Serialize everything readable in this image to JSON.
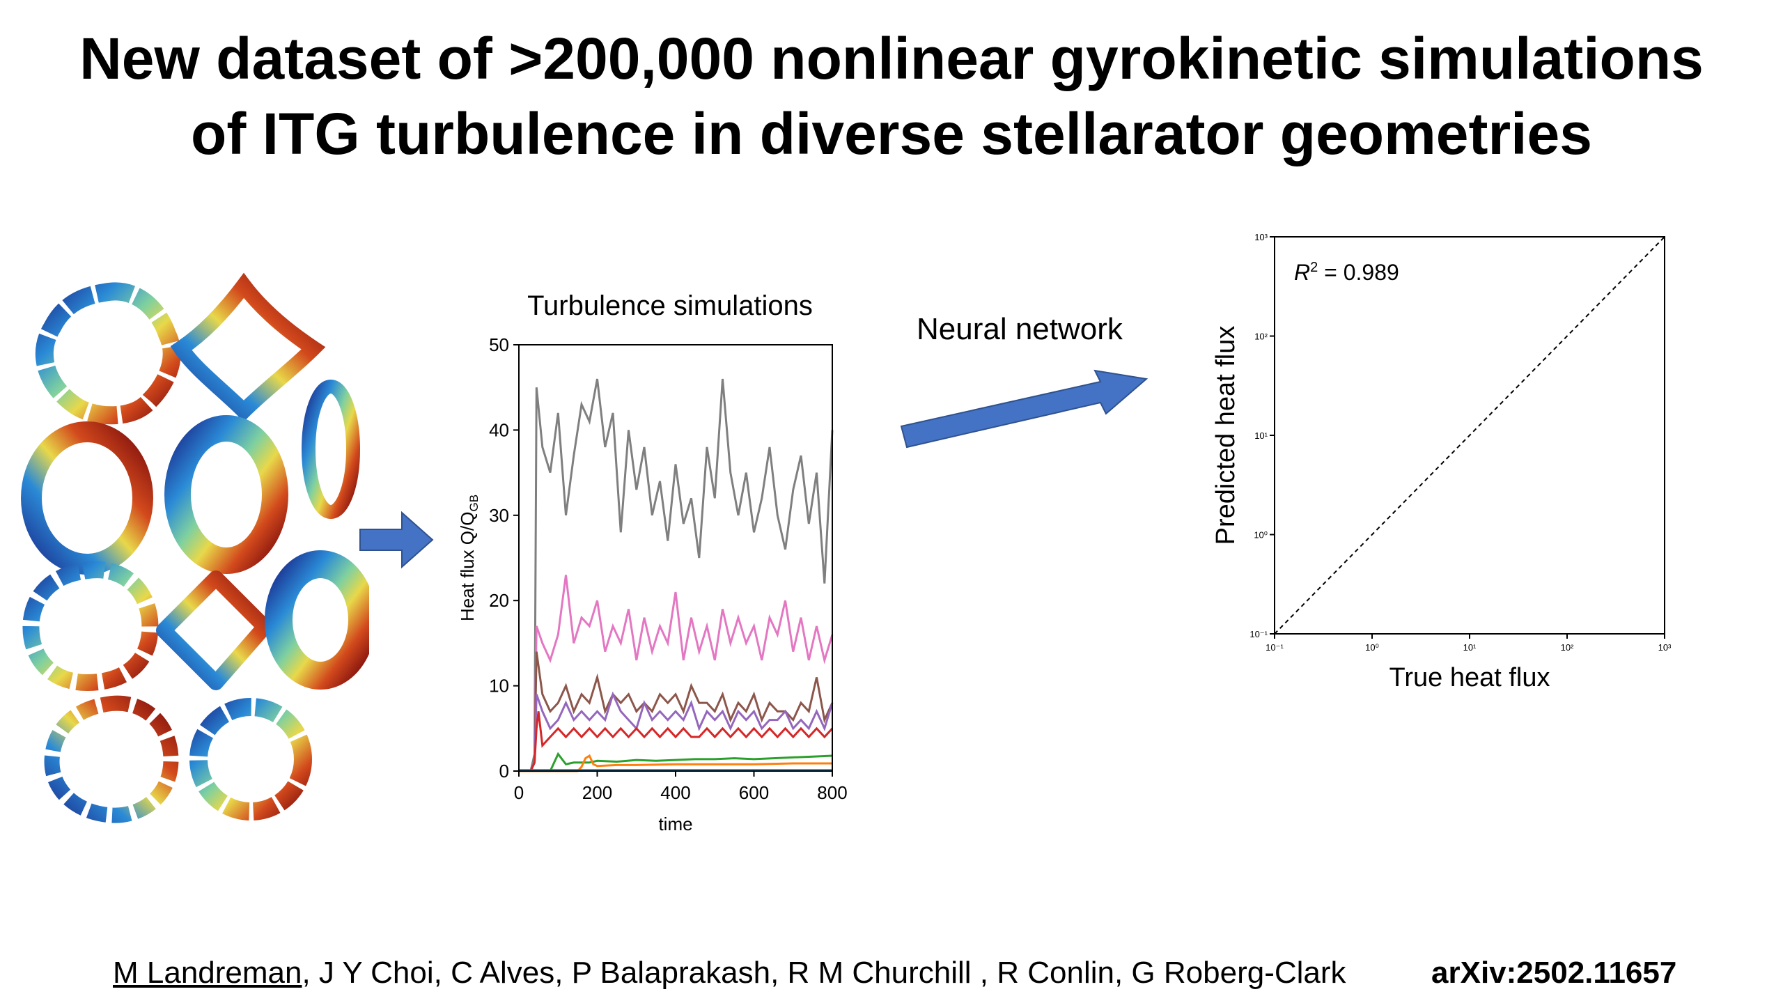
{
  "title": {
    "line1": "New dataset of >200,000 nonlinear gyrokinetic simulations",
    "line2": "of ITG turbulence in diverse stellarator geometries"
  },
  "arrow_label": "Neural network",
  "footer": {
    "first_author": "M Landreman",
    "other_authors": ", J Y Choi, C Alves, P Balaprakash, R M Churchill , R Conlin, G Roberg-Clark",
    "arxiv": "arXiv:2502.11657"
  },
  "colors": {
    "arrow": "#4472c4",
    "gray": "#7f7f7f",
    "pink": "#e377c2",
    "brown": "#8c564b",
    "purple": "#9467bd",
    "red": "#d62728",
    "green": "#2ca02c",
    "orange": "#ff7f0e",
    "tab_blue": "#1f77b4"
  },
  "chart_data": [
    {
      "type": "line",
      "title": "Turbulence simulations",
      "xlabel": "time",
      "ylabel_main": "Heat flux Q/Q",
      "ylabel_sub": "GB",
      "xlim": [
        0,
        800
      ],
      "ylim": [
        0,
        50
      ],
      "xticks": [
        "0",
        "200",
        "400",
        "600",
        "800"
      ],
      "yticks": [
        "0",
        "10",
        "20",
        "30",
        "40",
        "50"
      ],
      "grid": false,
      "series": [
        {
          "color": "#7f7f7f",
          "x": [
            0,
            30,
            40,
            45,
            60,
            80,
            100,
            120,
            140,
            160,
            180,
            200,
            220,
            240,
            260,
            280,
            300,
            320,
            340,
            360,
            380,
            400,
            420,
            440,
            460,
            480,
            500,
            520,
            540,
            560,
            580,
            600,
            620,
            640,
            660,
            680,
            700,
            720,
            740,
            760,
            780,
            800
          ],
          "y": [
            0,
            0,
            2,
            45,
            38,
            35,
            42,
            30,
            37,
            43,
            41,
            46,
            38,
            42,
            28,
            40,
            33,
            38,
            30,
            34,
            27,
            36,
            29,
            32,
            25,
            38,
            32,
            46,
            35,
            30,
            35,
            28,
            32,
            38,
            30,
            26,
            33,
            37,
            29,
            35,
            22,
            40
          ]
        },
        {
          "color": "#e377c2",
          "x": [
            0,
            30,
            40,
            45,
            60,
            80,
            100,
            120,
            140,
            160,
            180,
            200,
            220,
            240,
            260,
            280,
            300,
            320,
            340,
            360,
            380,
            400,
            420,
            440,
            460,
            480,
            500,
            520,
            540,
            560,
            580,
            600,
            620,
            640,
            660,
            680,
            700,
            720,
            740,
            760,
            780,
            800
          ],
          "y": [
            0,
            0,
            1,
            17,
            15,
            13,
            16,
            23,
            15,
            18,
            17,
            20,
            14,
            17,
            15,
            19,
            13,
            18,
            14,
            17,
            15,
            21,
            13,
            18,
            14,
            17,
            13,
            19,
            15,
            18,
            15,
            17,
            13,
            18,
            16,
            20,
            14,
            18,
            13,
            17,
            13,
            16
          ]
        },
        {
          "color": "#8c564b",
          "x": [
            0,
            30,
            40,
            45,
            60,
            80,
            100,
            120,
            140,
            160,
            180,
            200,
            220,
            240,
            260,
            280,
            300,
            320,
            340,
            360,
            380,
            400,
            420,
            440,
            460,
            480,
            500,
            520,
            540,
            560,
            580,
            600,
            620,
            640,
            660,
            680,
            700,
            720,
            740,
            760,
            780,
            800
          ],
          "y": [
            0,
            0,
            1,
            14,
            9,
            7,
            8,
            10,
            7,
            9,
            8,
            11,
            7,
            9,
            8,
            9,
            7,
            8,
            7,
            9,
            8,
            9,
            7,
            10,
            8,
            8,
            7,
            9,
            6,
            8,
            7,
            9,
            6,
            8,
            7,
            7,
            6,
            8,
            7,
            11,
            6,
            8
          ]
        },
        {
          "color": "#9467bd",
          "x": [
            0,
            30,
            40,
            45,
            60,
            80,
            100,
            120,
            140,
            160,
            180,
            200,
            220,
            240,
            260,
            280,
            300,
            320,
            340,
            360,
            380,
            400,
            420,
            440,
            460,
            480,
            500,
            520,
            540,
            560,
            580,
            600,
            620,
            640,
            660,
            680,
            700,
            720,
            740,
            760,
            780,
            800
          ],
          "y": [
            0,
            0,
            1,
            9,
            7,
            5,
            6,
            8,
            6,
            7,
            6,
            7,
            6,
            9,
            7,
            6,
            5,
            8,
            6,
            7,
            6,
            7,
            6,
            8,
            5,
            7,
            6,
            7,
            5,
            7,
            6,
            7,
            5,
            6,
            6,
            7,
            5,
            6,
            5,
            7,
            5,
            8
          ]
        },
        {
          "color": "#d62728",
          "x": [
            0,
            30,
            40,
            45,
            50,
            60,
            80,
            100,
            120,
            140,
            160,
            180,
            200,
            220,
            240,
            260,
            280,
            300,
            320,
            340,
            360,
            380,
            400,
            420,
            440,
            460,
            480,
            500,
            520,
            540,
            560,
            580,
            600,
            620,
            640,
            660,
            680,
            700,
            720,
            740,
            760,
            780,
            800
          ],
          "y": [
            0,
            0,
            1,
            5,
            7,
            3,
            4,
            5,
            4,
            5,
            4,
            5,
            4,
            5,
            4,
            5,
            4,
            5,
            4,
            5,
            4,
            5,
            4,
            5,
            4,
            4,
            5,
            4,
            5,
            4,
            5,
            4,
            5,
            4,
            5,
            4,
            5,
            4,
            5,
            4,
            5,
            4,
            5
          ]
        },
        {
          "color": "#2ca02c",
          "x": [
            0,
            50,
            80,
            100,
            120,
            140,
            160,
            180,
            200,
            250,
            300,
            350,
            400,
            450,
            500,
            550,
            600,
            650,
            700,
            750,
            800
          ],
          "y": [
            0,
            0,
            0,
            2,
            0.8,
            1,
            1,
            1,
            1.2,
            1.1,
            1.3,
            1.2,
            1.3,
            1.4,
            1.4,
            1.5,
            1.4,
            1.5,
            1.6,
            1.7,
            1.8
          ]
        },
        {
          "color": "#ff7f0e",
          "x": [
            0,
            150,
            160,
            170,
            180,
            190,
            200,
            250,
            300,
            400,
            500,
            600,
            700,
            800
          ],
          "y": [
            0,
            0,
            0.5,
            1.5,
            1.8,
            0.8,
            0.6,
            0.7,
            0.7,
            0.8,
            0.8,
            0.8,
            0.9,
            0.9
          ]
        },
        {
          "color": "#1f77b4",
          "x": [
            0,
            100,
            200,
            300,
            400,
            500,
            600,
            700,
            800
          ],
          "y": [
            0.1,
            0.1,
            0.1,
            0.1,
            0.1,
            0.1,
            0.1,
            0.1,
            0.1
          ]
        }
      ]
    },
    {
      "type": "scatter",
      "xlabel": "True heat flux",
      "ylabel": "Predicted heat flux",
      "scale": "log",
      "xlim": [
        0.1,
        1000
      ],
      "ylim": [
        0.1,
        1000
      ],
      "xticks": [
        "10⁻¹",
        "10⁰",
        "10¹",
        "10²",
        "10³"
      ],
      "yticks": [
        "10⁻¹",
        "10⁰",
        "10¹",
        "10²",
        "10³"
      ],
      "annotation_main": "R",
      "annotation_sup": "2",
      "annotation_value": " = 0.989",
      "reference_line": "y=x"
    }
  ]
}
